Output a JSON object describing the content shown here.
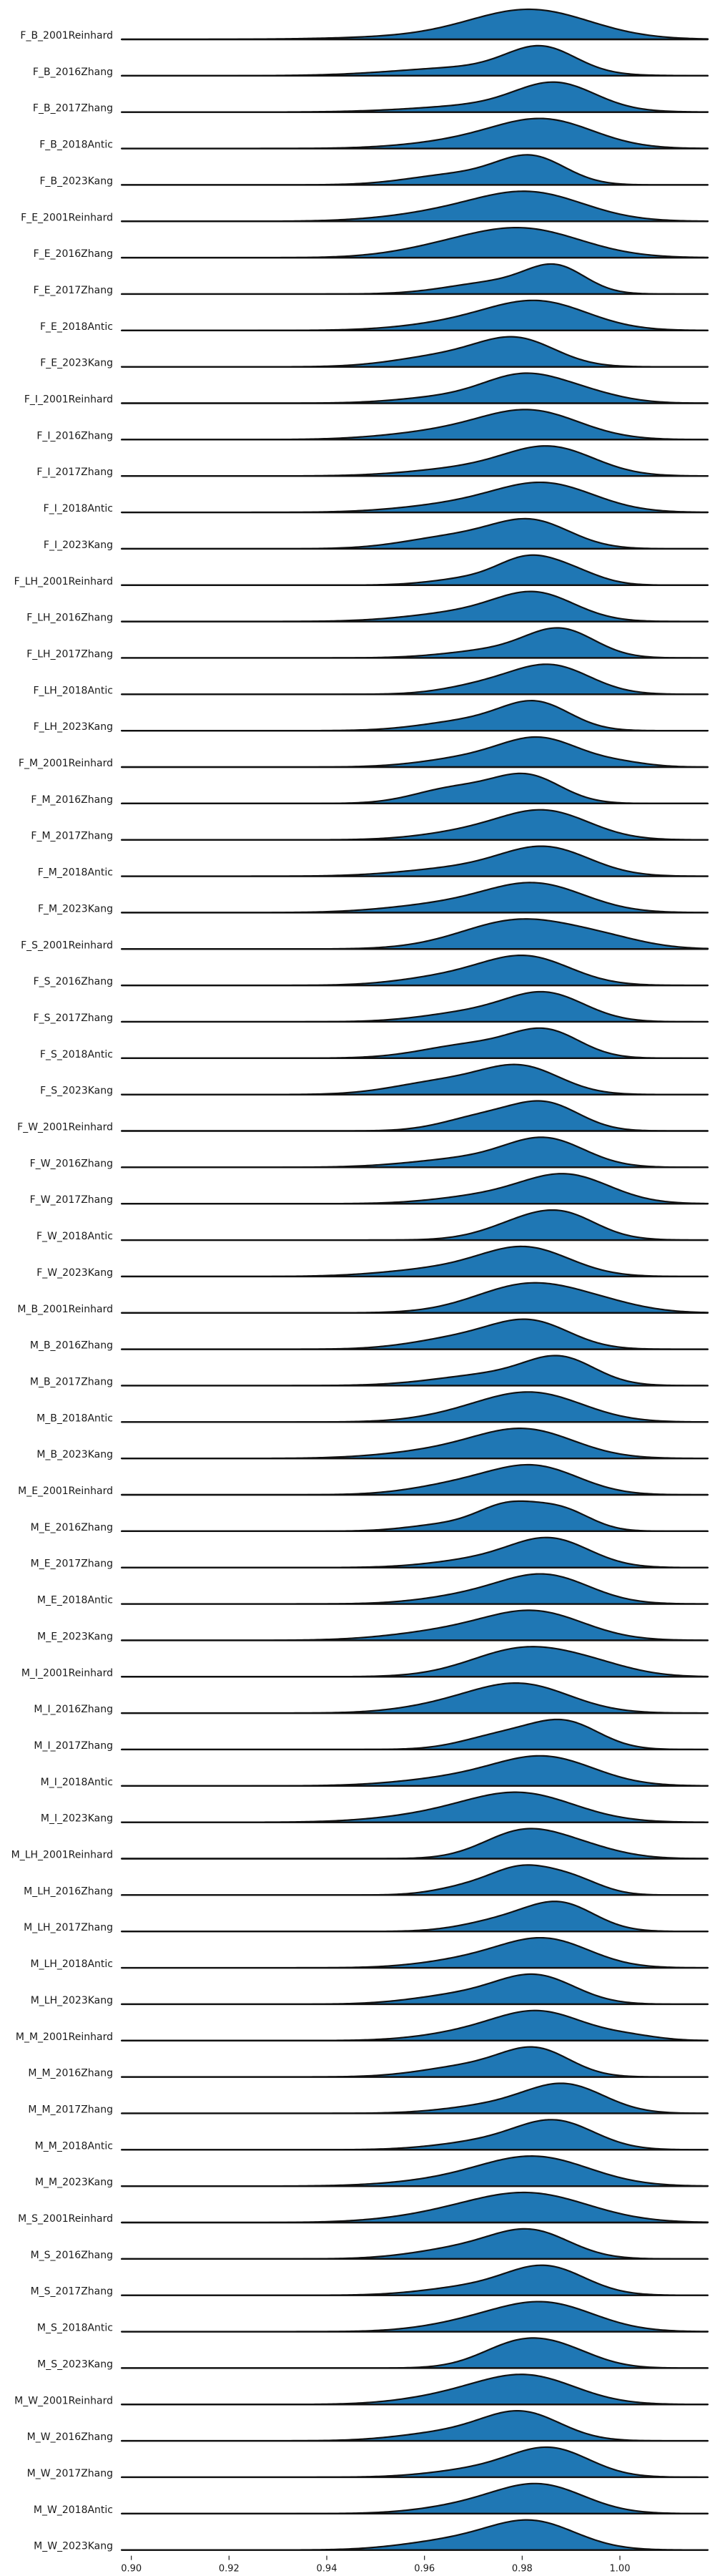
{
  "chart_data": {
    "type": "area",
    "subtype": "ridgeline-density",
    "title": "",
    "xlabel": "",
    "ylabel": "",
    "xlim": [
      0.898,
      1.018
    ],
    "x_ticks": [
      "0.90",
      "0.92",
      "0.94",
      "0.96",
      "0.98",
      "1.00"
    ],
    "x_tick_values": [
      0.9,
      0.92,
      0.94,
      0.96,
      0.98,
      1.0
    ],
    "grid": false,
    "legend": "none",
    "colors": {
      "fill": "#1f77b4",
      "outline": "#111111"
    },
    "series": [
      {
        "label": "F_B_2001Reinhard",
        "components": [
          [
            0.982,
            0.012,
            1.0
          ],
          [
            0.968,
            0.018,
            0.15
          ]
        ]
      },
      {
        "label": "F_B_2016Zhang",
        "components": [
          [
            0.984,
            0.007,
            1.0
          ],
          [
            0.97,
            0.015,
            0.35
          ]
        ]
      },
      {
        "label": "F_B_2017Zhang",
        "components": [
          [
            0.987,
            0.008,
            1.0
          ],
          [
            0.975,
            0.015,
            0.3
          ]
        ]
      },
      {
        "label": "F_B_2018Antic",
        "components": [
          [
            0.985,
            0.01,
            1.0
          ],
          [
            0.97,
            0.012,
            0.3
          ]
        ]
      },
      {
        "label": "F_B_2023Kang",
        "components": [
          [
            0.982,
            0.007,
            1.0
          ],
          [
            0.967,
            0.01,
            0.4
          ]
        ]
      },
      {
        "label": "F_E_2001Reinhard",
        "components": [
          [
            0.982,
            0.011,
            1.0
          ],
          [
            0.965,
            0.012,
            0.3
          ]
        ]
      },
      {
        "label": "F_E_2016Zhang",
        "components": [
          [
            0.98,
            0.012,
            1.0
          ],
          [
            0.962,
            0.01,
            0.2
          ]
        ]
      },
      {
        "label": "F_E_2017Zhang",
        "components": [
          [
            0.987,
            0.006,
            1.0
          ],
          [
            0.975,
            0.01,
            0.5
          ]
        ]
      },
      {
        "label": "F_E_2018Antic",
        "components": [
          [
            0.984,
            0.01,
            1.0
          ],
          [
            0.97,
            0.012,
            0.35
          ]
        ]
      },
      {
        "label": "F_E_2023Kang",
        "components": [
          [
            0.979,
            0.008,
            1.0
          ],
          [
            0.964,
            0.01,
            0.4
          ]
        ]
      },
      {
        "label": "F_I_2001Reinhard",
        "components": [
          [
            0.98,
            0.008,
            1.0
          ],
          [
            0.992,
            0.008,
            0.4
          ],
          [
            0.965,
            0.01,
            0.25
          ]
        ]
      },
      {
        "label": "F_I_2016Zhang",
        "components": [
          [
            0.982,
            0.01,
            1.0
          ],
          [
            0.965,
            0.012,
            0.3
          ]
        ]
      },
      {
        "label": "F_I_2017Zhang",
        "components": [
          [
            0.986,
            0.009,
            1.0
          ],
          [
            0.97,
            0.012,
            0.3
          ]
        ]
      },
      {
        "label": "F_I_2018Antic",
        "components": [
          [
            0.985,
            0.01,
            1.0
          ],
          [
            0.968,
            0.012,
            0.3
          ]
        ]
      },
      {
        "label": "F_I_2023Kang",
        "components": [
          [
            0.982,
            0.008,
            1.0
          ],
          [
            0.966,
            0.01,
            0.45
          ]
        ]
      },
      {
        "label": "F_LH_2001Reinhard",
        "components": [
          [
            0.981,
            0.006,
            1.0
          ],
          [
            0.99,
            0.006,
            0.55
          ],
          [
            0.97,
            0.008,
            0.3
          ]
        ]
      },
      {
        "label": "F_LH_2016Zhang",
        "components": [
          [
            0.983,
            0.008,
            1.0
          ],
          [
            0.97,
            0.012,
            0.4
          ]
        ]
      },
      {
        "label": "F_LH_2017Zhang",
        "components": [
          [
            0.988,
            0.007,
            1.0
          ],
          [
            0.975,
            0.01,
            0.3
          ]
        ]
      },
      {
        "label": "F_LH_2018Antic",
        "components": [
          [
            0.986,
            0.008,
            1.0
          ],
          [
            0.972,
            0.008,
            0.3
          ]
        ]
      },
      {
        "label": "F_LH_2023Kang",
        "components": [
          [
            0.983,
            0.007,
            1.0
          ],
          [
            0.97,
            0.01,
            0.4
          ]
        ]
      },
      {
        "label": "F_M_2001Reinhard",
        "components": [
          [
            0.984,
            0.008,
            1.0
          ],
          [
            0.97,
            0.01,
            0.35
          ],
          [
            1.0,
            0.006,
            0.15
          ]
        ]
      },
      {
        "label": "F_M_2016Zhang",
        "components": [
          [
            0.981,
            0.007,
            1.0
          ],
          [
            0.966,
            0.008,
            0.55
          ]
        ]
      },
      {
        "label": "F_M_2017Zhang",
        "components": [
          [
            0.985,
            0.009,
            1.0
          ],
          [
            0.97,
            0.01,
            0.3
          ]
        ]
      },
      {
        "label": "F_M_2018Antic",
        "components": [
          [
            0.985,
            0.009,
            1.0
          ],
          [
            0.968,
            0.012,
            0.3
          ]
        ]
      },
      {
        "label": "F_M_2023Kang",
        "components": [
          [
            0.983,
            0.01,
            1.0
          ],
          [
            0.965,
            0.012,
            0.3
          ]
        ]
      },
      {
        "label": "F_S_2001Reinhard",
        "components": [
          [
            0.98,
            0.012,
            1.0
          ],
          [
            0.998,
            0.008,
            0.2
          ]
        ]
      },
      {
        "label": "F_S_2016Zhang",
        "components": [
          [
            0.981,
            0.009,
            1.0
          ],
          [
            0.965,
            0.01,
            0.3
          ]
        ]
      },
      {
        "label": "F_S_2017Zhang",
        "components": [
          [
            0.985,
            0.008,
            1.0
          ],
          [
            0.97,
            0.01,
            0.35
          ]
        ]
      },
      {
        "label": "F_S_2018Antic",
        "components": [
          [
            0.985,
            0.007,
            1.0
          ],
          [
            0.97,
            0.01,
            0.55
          ]
        ]
      },
      {
        "label": "F_S_2023Kang",
        "components": [
          [
            0.98,
            0.008,
            1.0
          ],
          [
            0.964,
            0.01,
            0.5
          ]
        ]
      },
      {
        "label": "F_W_2001Reinhard",
        "components": [
          [
            0.985,
            0.007,
            1.0
          ],
          [
            0.972,
            0.008,
            0.55
          ]
        ]
      },
      {
        "label": "F_W_2016Zhang",
        "components": [
          [
            0.985,
            0.008,
            1.0
          ],
          [
            0.97,
            0.012,
            0.35
          ]
        ]
      },
      {
        "label": "F_W_2017Zhang",
        "components": [
          [
            0.989,
            0.009,
            1.0
          ],
          [
            0.972,
            0.01,
            0.25
          ]
        ]
      },
      {
        "label": "F_W_2018Antic",
        "components": [
          [
            0.984,
            0.009,
            1.0
          ],
          [
            0.99,
            0.006,
            0.3
          ]
        ]
      },
      {
        "label": "F_W_2023Kang",
        "components": [
          [
            0.981,
            0.009,
            1.0
          ],
          [
            0.965,
            0.012,
            0.3
          ]
        ]
      },
      {
        "label": "M_B_2001Reinhard",
        "components": [
          [
            0.982,
            0.011,
            1.0
          ],
          [
            0.998,
            0.008,
            0.15
          ]
        ]
      },
      {
        "label": "M_B_2016Zhang",
        "components": [
          [
            0.982,
            0.008,
            1.0
          ],
          [
            0.968,
            0.01,
            0.45
          ]
        ]
      },
      {
        "label": "M_B_2017Zhang",
        "components": [
          [
            0.988,
            0.007,
            1.0
          ],
          [
            0.975,
            0.012,
            0.5
          ]
        ]
      },
      {
        "label": "M_B_2018Antic",
        "components": [
          [
            0.983,
            0.01,
            1.0
          ],
          [
            0.97,
            0.01,
            0.3
          ]
        ]
      },
      {
        "label": "M_B_2023Kang",
        "components": [
          [
            0.981,
            0.01,
            1.0
          ],
          [
            0.965,
            0.012,
            0.3
          ]
        ]
      },
      {
        "label": "M_E_2001Reinhard",
        "components": [
          [
            0.983,
            0.009,
            1.0
          ],
          [
            0.968,
            0.01,
            0.4
          ]
        ]
      },
      {
        "label": "M_E_2016Zhang",
        "components": [
          [
            0.977,
            0.006,
            1.0
          ],
          [
            0.988,
            0.006,
            0.9
          ],
          [
            0.965,
            0.008,
            0.3
          ]
        ]
      },
      {
        "label": "M_E_2017Zhang",
        "components": [
          [
            0.986,
            0.008,
            1.0
          ],
          [
            0.972,
            0.01,
            0.3
          ]
        ]
      },
      {
        "label": "M_E_2018Antic",
        "components": [
          [
            0.985,
            0.009,
            1.0
          ],
          [
            0.97,
            0.01,
            0.3
          ]
        ]
      },
      {
        "label": "M_E_2023Kang",
        "components": [
          [
            0.983,
            0.01,
            1.0
          ],
          [
            0.966,
            0.012,
            0.35
          ]
        ]
      },
      {
        "label": "M_I_2001Reinhard",
        "components": [
          [
            0.981,
            0.011,
            1.0
          ],
          [
            0.996,
            0.008,
            0.2
          ]
        ]
      },
      {
        "label": "M_I_2016Zhang",
        "components": [
          [
            0.98,
            0.01,
            1.0
          ],
          [
            0.965,
            0.01,
            0.25
          ]
        ]
      },
      {
        "label": "M_I_2017Zhang",
        "components": [
          [
            0.989,
            0.007,
            1.0
          ],
          [
            0.976,
            0.008,
            0.55
          ]
        ]
      },
      {
        "label": "M_I_2018Antic",
        "components": [
          [
            0.985,
            0.01,
            1.0
          ],
          [
            0.968,
            0.012,
            0.3
          ]
        ]
      },
      {
        "label": "M_I_2023Kang",
        "components": [
          [
            0.98,
            0.011,
            1.0
          ],
          [
            0.963,
            0.012,
            0.25
          ]
        ]
      },
      {
        "label": "M_LH_2001Reinhard",
        "components": [
          [
            0.98,
            0.008,
            1.0
          ],
          [
            0.992,
            0.008,
            0.4
          ]
        ]
      },
      {
        "label": "M_LH_2016Zhang",
        "components": [
          [
            0.98,
            0.006,
            1.0
          ],
          [
            0.99,
            0.006,
            0.7
          ],
          [
            0.97,
            0.007,
            0.4
          ]
        ]
      },
      {
        "label": "M_LH_2017Zhang",
        "components": [
          [
            0.988,
            0.007,
            1.0
          ],
          [
            0.976,
            0.008,
            0.4
          ]
        ]
      },
      {
        "label": "M_LH_2018Antic",
        "components": [
          [
            0.985,
            0.009,
            1.0
          ],
          [
            0.97,
            0.01,
            0.3
          ]
        ]
      },
      {
        "label": "M_LH_2023Kang",
        "components": [
          [
            0.983,
            0.008,
            1.0
          ],
          [
            0.968,
            0.01,
            0.35
          ]
        ]
      },
      {
        "label": "M_M_2001Reinhard",
        "components": [
          [
            0.984,
            0.009,
            1.0
          ],
          [
            0.97,
            0.01,
            0.3
          ],
          [
            1.002,
            0.006,
            0.15
          ]
        ]
      },
      {
        "label": "M_M_2016Zhang",
        "components": [
          [
            0.983,
            0.007,
            1.0
          ],
          [
            0.97,
            0.01,
            0.45
          ]
        ]
      },
      {
        "label": "M_M_2017Zhang",
        "components": [
          [
            0.989,
            0.008,
            1.0
          ],
          [
            0.975,
            0.01,
            0.3
          ]
        ]
      },
      {
        "label": "M_M_2018Antic",
        "components": [
          [
            0.987,
            0.008,
            1.0
          ],
          [
            0.973,
            0.01,
            0.3
          ]
        ]
      },
      {
        "label": "M_M_2023Kang",
        "components": [
          [
            0.983,
            0.011,
            1.0
          ],
          [
            0.966,
            0.012,
            0.2
          ]
        ]
      },
      {
        "label": "M_S_2001Reinhard",
        "components": [
          [
            0.982,
            0.012,
            1.0
          ],
          [
            0.965,
            0.012,
            0.25
          ]
        ]
      },
      {
        "label": "M_S_2016Zhang",
        "components": [
          [
            0.982,
            0.008,
            1.0
          ],
          [
            0.968,
            0.01,
            0.4
          ]
        ]
      },
      {
        "label": "M_S_2017Zhang",
        "components": [
          [
            0.985,
            0.008,
            1.0
          ],
          [
            0.97,
            0.01,
            0.3
          ]
        ]
      },
      {
        "label": "M_S_2018Antic",
        "components": [
          [
            0.985,
            0.01,
            1.0
          ],
          [
            0.97,
            0.01,
            0.3
          ]
        ]
      },
      {
        "label": "M_S_2023Kang",
        "components": [
          [
            0.98,
            0.008,
            1.0
          ],
          [
            0.99,
            0.007,
            0.4
          ]
        ]
      },
      {
        "label": "M_W_2001Reinhard",
        "components": [
          [
            0.981,
            0.01,
            1.0
          ],
          [
            0.965,
            0.01,
            0.25
          ]
        ]
      },
      {
        "label": "M_W_2016Zhang",
        "components": [
          [
            0.98,
            0.008,
            1.0
          ],
          [
            0.965,
            0.01,
            0.3
          ]
        ]
      },
      {
        "label": "M_W_2017Zhang",
        "components": [
          [
            0.986,
            0.008,
            1.0
          ],
          [
            0.972,
            0.01,
            0.3
          ]
        ]
      },
      {
        "label": "M_W_2018Antic",
        "components": [
          [
            0.984,
            0.009,
            1.0
          ],
          [
            0.97,
            0.01,
            0.3
          ]
        ]
      },
      {
        "label": "M_W_2023Kang",
        "components": [
          [
            0.982,
            0.009,
            1.0
          ],
          [
            0.965,
            0.01,
            0.3
          ]
        ]
      }
    ]
  }
}
